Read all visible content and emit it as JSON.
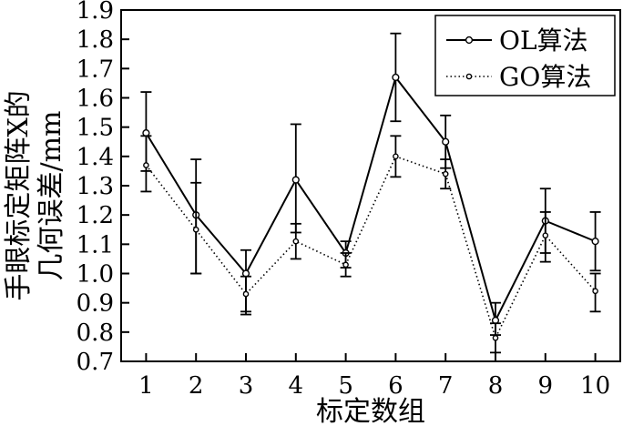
{
  "chart_data": {
    "type": "line",
    "title": "",
    "xlabel": "标定数组",
    "ylabel_line1": "手眼标定矩阵X的",
    "ylabel_line2": "几何误差/mm",
    "x": [
      1,
      2,
      3,
      4,
      5,
      6,
      7,
      8,
      9,
      10
    ],
    "xticks": [
      "1",
      "2",
      "3",
      "4",
      "5",
      "6",
      "7",
      "8",
      "9",
      "10"
    ],
    "ylim": [
      0.7,
      1.9
    ],
    "yticks": [
      "0.7",
      "0.8",
      "0.9",
      "1.0",
      "1.1",
      "1.2",
      "1.3",
      "1.4",
      "1.5",
      "1.6",
      "1.7",
      "1.8",
      "1.9"
    ],
    "grid": false,
    "legend_position": "top-right",
    "series": [
      {
        "name": "OL算法",
        "style": "solid",
        "color": "#000000",
        "values": [
          1.48,
          1.2,
          1.0,
          1.32,
          1.07,
          1.67,
          1.45,
          0.84,
          1.18,
          1.11
        ],
        "err_low": [
          1.35,
          1.0,
          0.87,
          1.14,
          1.02,
          1.52,
          1.36,
          0.79,
          1.07,
          1.01
        ],
        "err_high": [
          1.62,
          1.39,
          1.08,
          1.51,
          1.11,
          1.82,
          1.54,
          0.9,
          1.29,
          1.21
        ]
      },
      {
        "name": "GO算法",
        "style": "dotted",
        "color": "#000000",
        "values": [
          1.37,
          1.15,
          0.93,
          1.11,
          1.03,
          1.4,
          1.34,
          0.78,
          1.13,
          0.94
        ],
        "err_low": [
          1.28,
          1.0,
          0.86,
          1.05,
          0.99,
          1.33,
          1.29,
          0.73,
          1.04,
          0.87
        ],
        "err_high": [
          1.47,
          1.31,
          0.99,
          1.17,
          1.07,
          1.47,
          1.39,
          0.83,
          1.21,
          1.0
        ]
      }
    ]
  }
}
